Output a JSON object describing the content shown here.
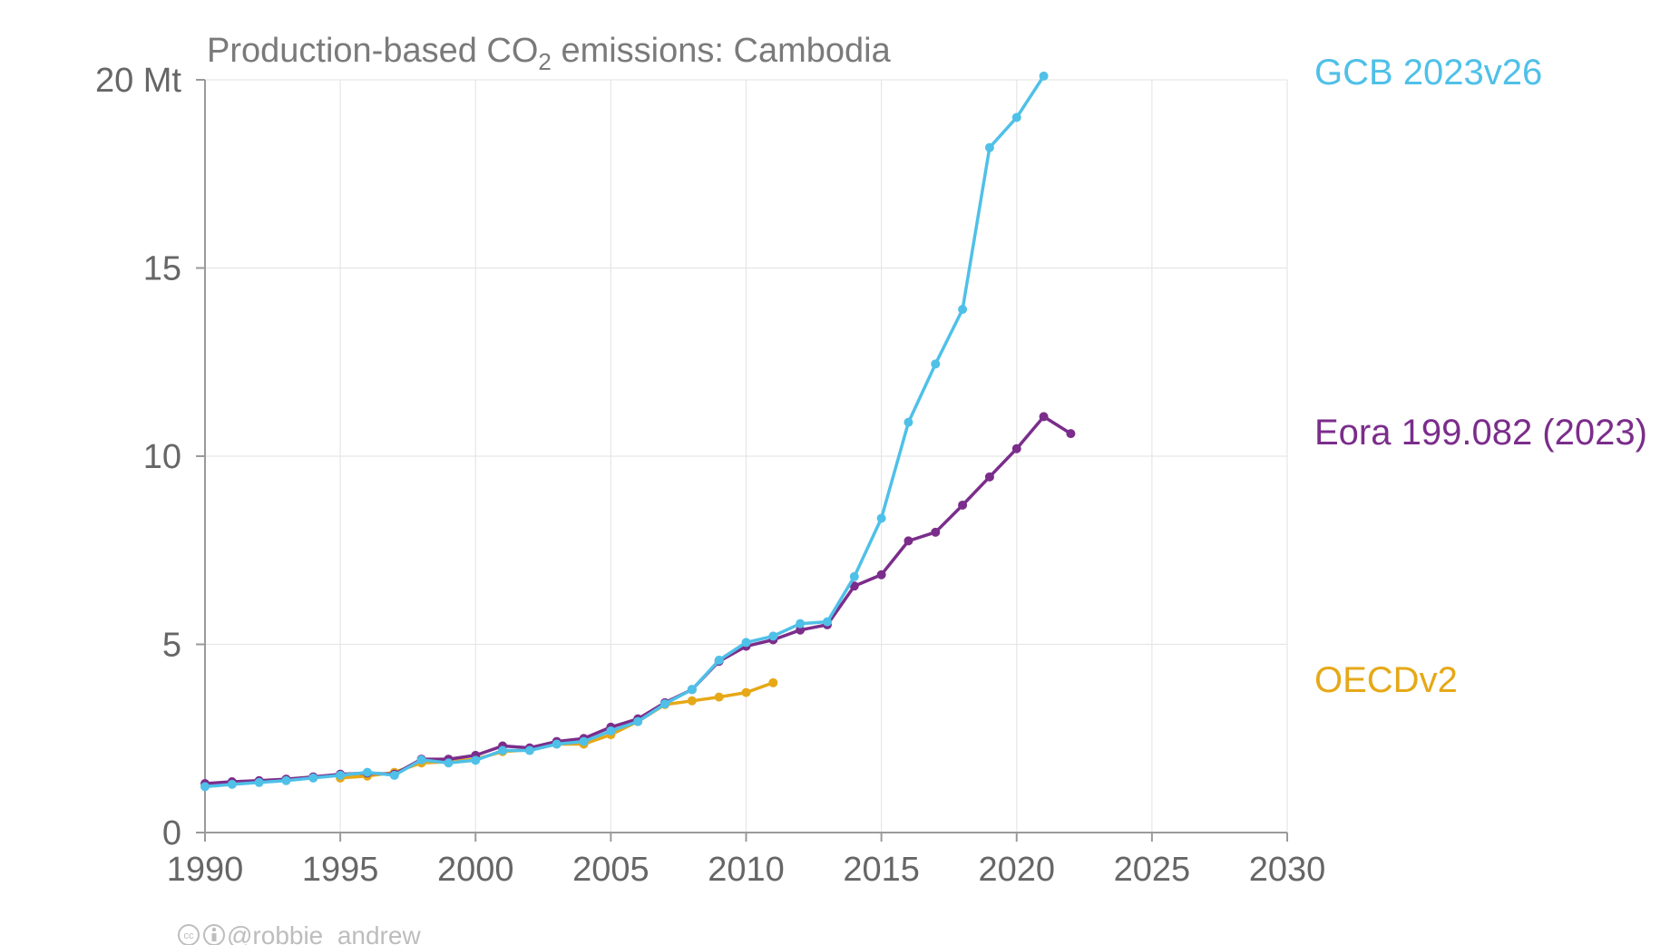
{
  "chart_data": {
    "type": "line",
    "title_parts": {
      "prefix": "Production-based CO",
      "subscript": "2",
      "suffix": " emissions: Cambodia"
    },
    "xlim": [
      1990,
      2030
    ],
    "ylim": [
      0,
      20
    ],
    "x_ticks": [
      "1990",
      "1995",
      "2000",
      "2005",
      "2010",
      "2015",
      "2020",
      "2025",
      "2030"
    ],
    "y_ticks": [
      {
        "value": 0,
        "label": "0"
      },
      {
        "value": 5,
        "label": "5"
      },
      {
        "value": 10,
        "label": "10"
      },
      {
        "value": 15,
        "label": "15"
      },
      {
        "value": 20,
        "label": "20 Mt"
      }
    ],
    "grid": true,
    "series": [
      {
        "name": "OECDv2",
        "color": "#E6A817",
        "x": [
          1995,
          1996,
          1997,
          1998,
          1999,
          2000,
          2001,
          2002,
          2003,
          2004,
          2005,
          2006,
          2007,
          2008,
          2009,
          2010,
          2011
        ],
        "values": [
          1.45,
          1.5,
          1.6,
          1.85,
          1.88,
          1.95,
          2.15,
          2.2,
          2.35,
          2.35,
          2.6,
          2.95,
          3.4,
          3.5,
          3.6,
          3.72,
          3.98
        ]
      },
      {
        "name": "Eora 199.082 (2023)",
        "color": "#7B2D8B",
        "x": [
          1990,
          1991,
          1992,
          1993,
          1994,
          1995,
          1996,
          1997,
          1998,
          1999,
          2000,
          2001,
          2002,
          2003,
          2004,
          2005,
          2006,
          2007,
          2008,
          2009,
          2010,
          2011,
          2012,
          2013,
          2014,
          2015,
          2016,
          2017,
          2018,
          2019,
          2020,
          2021,
          2022
        ],
        "values": [
          1.3,
          1.35,
          1.38,
          1.42,
          1.48,
          1.55,
          1.58,
          1.55,
          1.95,
          1.95,
          2.05,
          2.3,
          2.25,
          2.42,
          2.5,
          2.8,
          3.02,
          3.45,
          3.8,
          4.55,
          4.95,
          5.12,
          5.38,
          5.52,
          6.55,
          6.85,
          7.75,
          7.98,
          8.7,
          9.45,
          10.2,
          11.05,
          10.6
        ]
      },
      {
        "name": "GCB 2023v26",
        "color": "#4FC0E8",
        "x": [
          1990,
          1991,
          1992,
          1993,
          1994,
          1995,
          1996,
          1997,
          1998,
          1999,
          2000,
          2001,
          2002,
          2003,
          2004,
          2005,
          2006,
          2007,
          2008,
          2009,
          2010,
          2011,
          2012,
          2013,
          2014,
          2015,
          2016,
          2017,
          2018,
          2019,
          2020,
          2021
        ],
        "values": [
          1.22,
          1.28,
          1.33,
          1.38,
          1.45,
          1.52,
          1.6,
          1.52,
          1.93,
          1.85,
          1.92,
          2.18,
          2.18,
          2.35,
          2.42,
          2.7,
          2.95,
          3.42,
          3.8,
          4.58,
          5.05,
          5.22,
          5.55,
          5.6,
          6.8,
          8.35,
          10.9,
          12.45,
          13.9,
          18.2,
          19.0,
          20.1
        ]
      }
    ],
    "legend": [
      {
        "label": "GCB 2023v26",
        "color": "#4FC0E8"
      },
      {
        "label": "Eora 199.082 (2023)",
        "color": "#7B2D8B"
      },
      {
        "label": "OECDv2",
        "color": "#E6A817"
      }
    ]
  },
  "credit": {
    "icons": [
      "cc-icon",
      "attribution-icon"
    ],
    "handle": "@robbie_andrew"
  }
}
